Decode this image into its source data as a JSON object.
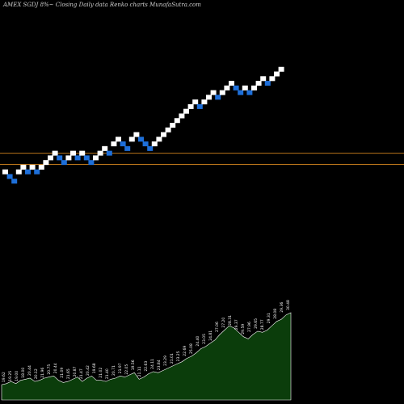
{
  "chart_data": {
    "type": "renko",
    "title": "AMEX  SGDJ 8%~  Closing Daily data  Renko  charts MunafaSutra.com",
    "colors": {
      "background": "#000000",
      "up_brick": "#ffffff",
      "down_brick": "#1e6fd9",
      "reference_line": "#b8741a",
      "volume_fill": "#0b3d0b",
      "volume_edge": "#ffffff",
      "label": "#ffffff"
    },
    "reference_lines": [
      {
        "name": "upper",
        "level": 21.5
      },
      {
        "name": "lower",
        "level": 20.3
      }
    ],
    "bricks": [
      {
        "dir": "up",
        "level": 19.5
      },
      {
        "dir": "down",
        "level": 19.0
      },
      {
        "dir": "down",
        "level": 18.5
      },
      {
        "dir": "up",
        "level": 19.5
      },
      {
        "dir": "up",
        "level": 20.0
      },
      {
        "dir": "down",
        "level": 19.5
      },
      {
        "dir": "up",
        "level": 20.0
      },
      {
        "dir": "down",
        "level": 19.5
      },
      {
        "dir": "up",
        "level": 20.0
      },
      {
        "dir": "up",
        "level": 20.5
      },
      {
        "dir": "up",
        "level": 21.0
      },
      {
        "dir": "up",
        "level": 21.5
      },
      {
        "dir": "down",
        "level": 21.0
      },
      {
        "dir": "down",
        "level": 20.5
      },
      {
        "dir": "up",
        "level": 21.0
      },
      {
        "dir": "up",
        "level": 21.5
      },
      {
        "dir": "down",
        "level": 21.0
      },
      {
        "dir": "up",
        "level": 21.5
      },
      {
        "dir": "down",
        "level": 21.0
      },
      {
        "dir": "down",
        "level": 20.5
      },
      {
        "dir": "up",
        "level": 21.0
      },
      {
        "dir": "up",
        "level": 21.5
      },
      {
        "dir": "up",
        "level": 22.0
      },
      {
        "dir": "down",
        "level": 21.5
      },
      {
        "dir": "up",
        "level": 22.5
      },
      {
        "dir": "up",
        "level": 23.0
      },
      {
        "dir": "down",
        "level": 22.5
      },
      {
        "dir": "down",
        "level": 22.0
      },
      {
        "dir": "up",
        "level": 23.0
      },
      {
        "dir": "up",
        "level": 23.5
      },
      {
        "dir": "down",
        "level": 23.0
      },
      {
        "dir": "down",
        "level": 22.5
      },
      {
        "dir": "down",
        "level": 22.0
      },
      {
        "dir": "up",
        "level": 22.5
      },
      {
        "dir": "up",
        "level": 23.0
      },
      {
        "dir": "up",
        "level": 23.5
      },
      {
        "dir": "up",
        "level": 24.0
      },
      {
        "dir": "up",
        "level": 24.5
      },
      {
        "dir": "up",
        "level": 25.0
      },
      {
        "dir": "up",
        "level": 25.5
      },
      {
        "dir": "up",
        "level": 26.0
      },
      {
        "dir": "up",
        "level": 26.5
      },
      {
        "dir": "up",
        "level": 27.0
      },
      {
        "dir": "down",
        "level": 26.5
      },
      {
        "dir": "up",
        "level": 27.0
      },
      {
        "dir": "up",
        "level": 27.5
      },
      {
        "dir": "up",
        "level": 28.0
      },
      {
        "dir": "down",
        "level": 27.5
      },
      {
        "dir": "up",
        "level": 28.0
      },
      {
        "dir": "up",
        "level": 28.5
      },
      {
        "dir": "up",
        "level": 29.0
      },
      {
        "dir": "down",
        "level": 28.5
      },
      {
        "dir": "down",
        "level": 28.0
      },
      {
        "dir": "up",
        "level": 28.5
      },
      {
        "dir": "down",
        "level": 28.0
      },
      {
        "dir": "up",
        "level": 28.5
      },
      {
        "dir": "up",
        "level": 29.0
      },
      {
        "dir": "up",
        "level": 29.5
      },
      {
        "dir": "down",
        "level": 29.0
      },
      {
        "dir": "up",
        "level": 29.5
      },
      {
        "dir": "up",
        "level": 30.0
      },
      {
        "dir": "up",
        "level": 30.5
      }
    ],
    "volume": [
      14,
      15,
      17,
      15,
      18,
      19,
      20,
      17,
      18,
      20,
      21,
      22,
      18,
      16,
      17,
      19,
      21,
      17,
      20,
      22,
      18,
      18,
      17,
      19,
      20,
      22,
      21,
      23,
      25,
      19,
      21,
      24,
      26,
      25,
      27,
      29,
      31,
      33,
      35,
      38,
      40,
      43,
      47,
      49,
      52,
      55,
      60,
      64,
      68,
      66,
      62,
      58,
      56,
      60,
      63,
      62,
      64,
      68,
      72,
      74,
      78,
      80
    ],
    "volume_labels": [
      "19.62",
      "19.25",
      "19.00",
      "18.00",
      "20.44",
      "20.12",
      "21.96",
      "20.75",
      "20.44",
      "21.09",
      "21.65",
      "20.87",
      "21.47",
      "20.42",
      "19.68",
      "21.02",
      "21.40",
      "20.71",
      "21.97",
      "22.05",
      "19.56",
      "21.11",
      "22.63",
      "24.11",
      "23.84",
      "23.29",
      "21.01",
      "23.25",
      "22.69",
      "25.08",
      "24.40",
      "23.05",
      "24.81",
      "27.06",
      "27.20",
      "28.31",
      "29.37",
      "29.59",
      "27.96",
      "29.65",
      "28.77",
      "29.31",
      "28.08",
      "29.36",
      "30.48"
    ]
  }
}
